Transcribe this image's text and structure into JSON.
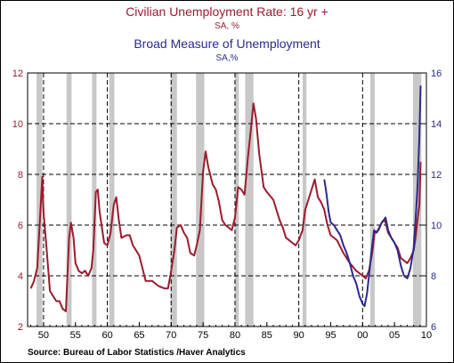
{
  "chart_data": {
    "type": "line",
    "titles": [
      {
        "title": "Civilian Unemployment Rate: 16 yr +",
        "subtitle": "SA, %",
        "color": "#9b1c2e"
      },
      {
        "title": "Broad Measure of Unemployment",
        "subtitle": "SA,%",
        "color": "#2b2a8c"
      }
    ],
    "source": "Source:  Bureau of Labor Statistics /Haver Analytics",
    "x_axis": {
      "range": [
        1947.5,
        2010
      ],
      "ticks": [
        1950,
        1955,
        1960,
        1965,
        1970,
        1975,
        1980,
        1985,
        1990,
        1995,
        2000,
        2005,
        2010
      ],
      "tick_labels": [
        "50",
        "55",
        "60",
        "65",
        "70",
        "75",
        "80",
        "85",
        "90",
        "95",
        "00",
        "05",
        "10"
      ]
    },
    "y_left": {
      "range": [
        2,
        12
      ],
      "ticks": [
        2,
        4,
        6,
        8,
        10,
        12
      ],
      "tick_labels": [
        "2",
        "4",
        "6",
        "8",
        "10",
        "12"
      ],
      "color": "#9b1c2e"
    },
    "y_right": {
      "range": [
        6,
        16
      ],
      "ticks": [
        6,
        8,
        10,
        12,
        14,
        16
      ],
      "tick_labels": [
        "6",
        "8",
        "10",
        "12",
        "14",
        "16"
      ],
      "color": "#2b2a8c"
    },
    "grid": {
      "horizontal": [
        4,
        6,
        8,
        10
      ],
      "vertical": [
        1950,
        1960,
        1970,
        1980,
        1990,
        2000
      ],
      "style": "dashed"
    },
    "recessions": [
      [
        1948.9,
        1949.8
      ],
      [
        1953.6,
        1954.4
      ],
      [
        1957.6,
        1958.3
      ],
      [
        1960.3,
        1961.1
      ],
      [
        1969.9,
        1970.9
      ],
      [
        1973.9,
        1975.2
      ],
      [
        1980.0,
        1980.6
      ],
      [
        1981.6,
        1982.9
      ],
      [
        1990.6,
        1991.2
      ],
      [
        2001.2,
        2001.9
      ],
      [
        2007.9,
        2009.2
      ]
    ],
    "series": [
      {
        "name": "Civilian Unemployment Rate: 16 yr +",
        "axis": "left",
        "color": "#9b1c2e",
        "x": [
          1948.0,
          1948.5,
          1949.0,
          1949.5,
          1949.8,
          1950.0,
          1950.5,
          1951.0,
          1951.5,
          1952.0,
          1952.5,
          1953.0,
          1953.5,
          1954.0,
          1954.3,
          1954.7,
          1955.0,
          1955.5,
          1956.0,
          1956.5,
          1957.0,
          1957.5,
          1957.8,
          1958.2,
          1958.5,
          1958.8,
          1959.2,
          1959.5,
          1960.0,
          1960.5,
          1961.0,
          1961.4,
          1961.8,
          1962.2,
          1963.0,
          1963.5,
          1964.0,
          1964.5,
          1965.0,
          1965.5,
          1966.0,
          1967.0,
          1968.0,
          1969.0,
          1969.5,
          1970.0,
          1970.5,
          1970.9,
          1971.5,
          1972.0,
          1972.5,
          1973.0,
          1973.6,
          1974.0,
          1974.5,
          1975.0,
          1975.4,
          1975.8,
          1976.5,
          1977.0,
          1977.5,
          1978.0,
          1978.5,
          1979.0,
          1979.5,
          1980.0,
          1980.5,
          1981.0,
          1981.5,
          1982.0,
          1982.5,
          1982.9,
          1983.3,
          1983.8,
          1984.5,
          1985.0,
          1986.0,
          1987.0,
          1987.5,
          1988.0,
          1988.5,
          1989.0,
          1989.5,
          1990.0,
          1990.6,
          1991.0,
          1991.5,
          1992.0,
          1992.5,
          1993.0,
          1993.5,
          1994.0,
          1994.5,
          1995.0,
          1996.0,
          1997.0,
          1998.0,
          1999.0,
          2000.0,
          2000.5,
          2001.0,
          2001.5,
          2001.9,
          2002.5,
          2003.0,
          2003.5,
          2004.0,
          2004.5,
          2005.0,
          2005.5,
          2006.0,
          2006.5,
          2007.0,
          2007.5,
          2008.0,
          2008.3,
          2008.6,
          2008.9,
          2009.1
        ],
        "y": [
          3.5,
          3.8,
          4.3,
          6.5,
          7.9,
          6.5,
          5.0,
          3.4,
          3.2,
          3.0,
          3.0,
          2.7,
          2.6,
          5.5,
          6.1,
          5.5,
          4.5,
          4.2,
          4.1,
          4.2,
          4.0,
          4.3,
          5.0,
          7.3,
          7.4,
          6.5,
          5.8,
          5.3,
          5.2,
          5.7,
          6.8,
          7.1,
          6.2,
          5.5,
          5.6,
          5.6,
          5.2,
          5.0,
          4.8,
          4.3,
          3.8,
          3.8,
          3.6,
          3.5,
          3.5,
          4.2,
          5.0,
          5.9,
          6.0,
          5.7,
          5.5,
          4.9,
          4.8,
          5.2,
          5.8,
          8.1,
          8.9,
          8.3,
          7.6,
          7.4,
          6.9,
          6.2,
          6.0,
          5.9,
          5.8,
          6.3,
          7.5,
          7.4,
          7.2,
          8.6,
          9.8,
          10.8,
          10.2,
          8.8,
          7.5,
          7.3,
          7.0,
          6.2,
          5.9,
          5.5,
          5.4,
          5.3,
          5.2,
          5.4,
          5.8,
          6.6,
          7.0,
          7.4,
          7.8,
          7.1,
          6.9,
          6.6,
          6.0,
          5.6,
          5.4,
          4.9,
          4.5,
          4.2,
          4.0,
          3.9,
          4.2,
          4.9,
          5.7,
          5.8,
          6.1,
          6.2,
          5.7,
          5.5,
          5.3,
          5.1,
          4.7,
          4.6,
          4.5,
          4.7,
          5.0,
          5.5,
          6.2,
          6.8,
          8.5
        ],
        "labels": []
      },
      {
        "name": "Broad Measure of Unemployment",
        "axis": "right",
        "color": "#2b2a8c",
        "x": [
          1994.0,
          1994.3,
          1994.7,
          1995.0,
          1995.5,
          1996.0,
          1996.5,
          1997.0,
          1997.5,
          1998.0,
          1998.5,
          1999.0,
          1999.5,
          2000.0,
          2000.3,
          2000.7,
          2001.0,
          2001.4,
          2001.8,
          2002.2,
          2002.6,
          2003.0,
          2003.3,
          2003.6,
          2004.0,
          2004.5,
          2005.0,
          2005.5,
          2006.0,
          2006.5,
          2007.0,
          2007.5,
          2008.0,
          2008.3,
          2008.6,
          2008.9,
          2009.1
        ],
        "y": [
          11.8,
          11.3,
          10.5,
          10.1,
          10.0,
          9.8,
          9.6,
          9.2,
          8.9,
          8.5,
          8.0,
          7.7,
          7.2,
          6.9,
          6.8,
          7.3,
          8.0,
          9.0,
          9.8,
          9.7,
          9.9,
          10.1,
          10.2,
          10.3,
          9.8,
          9.5,
          9.3,
          9.0,
          8.4,
          8.0,
          7.9,
          8.3,
          9.1,
          10.2,
          11.5,
          13.5,
          15.5
        ]
      }
    ]
  }
}
